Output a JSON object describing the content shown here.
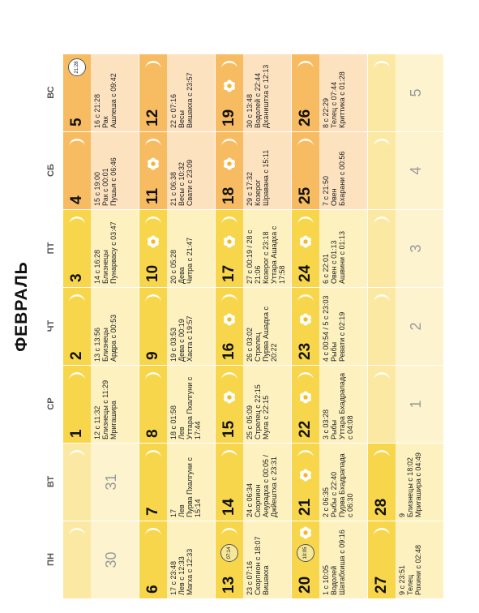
{
  "title": "ФЕВРАЛЬ",
  "weekdays": [
    "ПН",
    "ВТ",
    "СР",
    "ЧТ",
    "ПТ",
    "СБ",
    "ВС"
  ],
  "colors": {
    "yellow_band": "#f8d64c",
    "yellow_body": "#fcf1bf",
    "orange_band": "#f7bb62",
    "orange_body": "#fde2c0",
    "muted_band": "#fbe9a3",
    "muted_body": "#fdf3cf",
    "moon": "#ffffff"
  },
  "weeks": [
    [
      {
        "day": "30",
        "muted": true,
        "moons": 1
      },
      {
        "day": "31",
        "muted": true,
        "moons": 1
      },
      {
        "day": "1",
        "moons": 1,
        "info": "12 с 11:32\nБлизнецы с 11:29\nМригашира"
      },
      {
        "day": "2",
        "moons": 1,
        "info": "13 с 13:56\nБлизнецы\nАрдра с 00:53"
      },
      {
        "day": "3",
        "moons": 1,
        "info": "14 с 16:28\nБлизнецы\nПунарвасу с 03:47"
      },
      {
        "day": "4",
        "weekend": true,
        "moons": 1,
        "info": "15 с 19:00\nРак с 00:01\nПушья с 06:46"
      },
      {
        "day": "5",
        "weekend": true,
        "badge": "21:28",
        "info": "16 с 21:28\nРак\nАшлеша с 09:42"
      }
    ],
    [
      {
        "day": "6",
        "moons": 1,
        "info": "17 с 23:48\nЛев с 12:33\nМагха с 12:33"
      },
      {
        "day": "7",
        "moons": 1,
        "info": "17\nЛев\nПурва Пхалгуни с\n15:14"
      },
      {
        "day": "8",
        "moons": 1,
        "info": "18 с 01:58\nЛев\nУттара Пхалгуни с\n17:44"
      },
      {
        "day": "9",
        "moons": 1,
        "info": "19 с 03:53\nДева с 00:19\nХаста с 19:57"
      },
      {
        "day": "10",
        "moons": 1,
        "flower": true,
        "info": "20 с 05:28\nДева\nЧитра с 21:47"
      },
      {
        "day": "11",
        "weekend": true,
        "moons": 1,
        "flower": true,
        "info": "21 с 06:38\nВесы с 10:32\nСвати с 23:09"
      },
      {
        "day": "12",
        "weekend": true,
        "moons": 1,
        "info": "22 с 07:16\nВесы\nВишакха с 23:57"
      }
    ],
    [
      {
        "day": "13",
        "moons": 1,
        "badge": "07:14",
        "info": "23 с 07:16\nСкорпион с 18:07\nВишакха"
      },
      {
        "day": "14",
        "moons": 1,
        "info": "24 с 06:34\nСкорпион\nАнурадха с 00:05 /\nДжйештха с 23:31"
      },
      {
        "day": "15",
        "moons": 1,
        "flower": true,
        "info": "25 с 05:09\nСтрелец с 22:15\nМула с 22:15"
      },
      {
        "day": "16",
        "moons": 1,
        "flower": true,
        "info": "26 с 03:02\nСтрелец\nПурва Ашадха с\n20:22"
      },
      {
        "day": "17",
        "moons": 1,
        "flower": true,
        "info": "27 с 00:19 / 28 с 21:06\nКозерог с 23:18\nУттара Ашадха с\n17:58"
      },
      {
        "day": "18",
        "weekend": true,
        "moons": 1,
        "flower": true,
        "info": "29 с 17:32\nКозерог\nШравана с 15:11"
      },
      {
        "day": "19",
        "weekend": true,
        "moons": 1,
        "flower": true,
        "info": "30 с 13:48\nВодолей с 22:44\nДхаништха с 12:13"
      }
    ],
    [
      {
        "day": "20",
        "flower": true,
        "badge": "10:05",
        "info": "1 с 10:05\nВодолей\nШатабхиша с 09:16"
      },
      {
        "day": "21",
        "moons": 1,
        "flower": true,
        "info": "2 с 06:35\nРыбы с 22:40\nПурва Бхадрапада\nс 06:30"
      },
      {
        "day": "22",
        "moons": 1,
        "flower": true,
        "info": "3 с 03:28\nРыбы\nУттара Бхадрапада\nс 04:08"
      },
      {
        "day": "23",
        "moons": 1,
        "flower": true,
        "info": "4 с 00:54 / 5 с 23:03\nРыбы\nРевати с 02:19"
      },
      {
        "day": "24",
        "moons": 1,
        "flower": true,
        "info": "6 с 22:01\nОвен с 01:13\nАшвини с 01:13"
      },
      {
        "day": "25",
        "weekend": true,
        "moons": 1,
        "info": "7 с 21:50\nОвен\nБхарани с 00:56"
      },
      {
        "day": "26",
        "weekend": true,
        "moons": 1,
        "info": "8 с 22:29\nТелец с 07:44\nКриттика с 01:28"
      }
    ],
    [
      {
        "day": "27",
        "moons": 1,
        "info": "9 с 23:51\nТелец\nРохини с 02:48"
      },
      {
        "day": "28",
        "moons": 1,
        "info": "9\nБлизнецы с 18:02\nМригашира с 04:49"
      },
      {
        "day": "1",
        "muted": true,
        "moons": 1
      },
      {
        "day": "2",
        "muted": true,
        "moons": 1
      },
      {
        "day": "3",
        "muted": true,
        "moons": 1
      },
      {
        "day": "4",
        "muted": true,
        "weekend": true,
        "moons": 1
      },
      {
        "day": "5",
        "muted": true,
        "weekend": true,
        "moons": 1
      }
    ]
  ]
}
